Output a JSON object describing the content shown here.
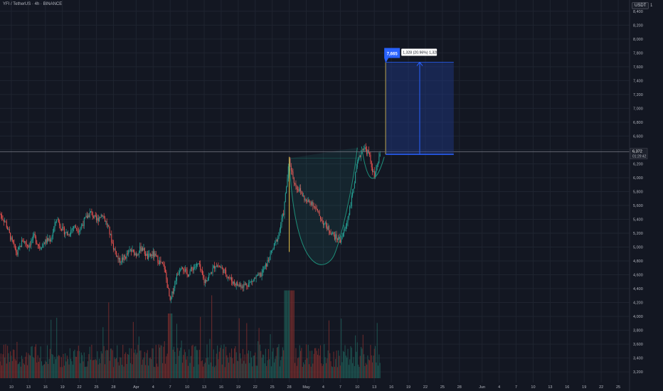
{
  "header": {
    "title": "YFI / TetherUS · 4h · BINANCE",
    "currency": "USDT",
    "collapse_label": "1"
  },
  "colors": {
    "background": "#131722",
    "grid": "#1f2430",
    "up": "#26a69a",
    "down": "#ef5350",
    "target_box": "#1e3a8a",
    "target_box_border": "#2962ff",
    "target_label_bg": "#2962ff",
    "cup_line": "#1e8f7a",
    "yellow_line": "#e8c547",
    "price_line": "#787b86",
    "axis_text": "#b2b5be"
  },
  "chart_data": {
    "type": "candlestick",
    "symbol": "YFI / TetherUS",
    "timeframe": "4h",
    "exchange": "BINANCE",
    "currency": "USDT",
    "y_ticks": [
      "8,400",
      "8,200",
      "8,000",
      "7,800",
      "7,600",
      "7,400",
      "7,200",
      "7,000",
      "6,800",
      "6,600",
      "6,400",
      "6,200",
      "6,000",
      "5,800",
      "5,600",
      "5,400",
      "5,200",
      "5,000",
      "4,800",
      "4,600",
      "4,400",
      "4,200",
      "4,000",
      "3,800",
      "3,600",
      "3,400",
      "3,200"
    ],
    "ylim": [
      3150,
      8480
    ],
    "x_ticks": [
      "10",
      "13",
      "16",
      "19",
      "22",
      "25",
      "28",
      "Apr",
      "4",
      "7",
      "10",
      "13",
      "16",
      "19",
      "22",
      "25",
      "28",
      "May",
      "4",
      "7",
      "10",
      "13",
      "16",
      "19",
      "22",
      "25",
      "28",
      "Jun",
      "4",
      "7",
      "10",
      "13",
      "16",
      "19",
      "22",
      "25"
    ],
    "x_tick_dates": [
      "2024-03-10",
      "2024-03-13",
      "2024-03-16",
      "2024-03-19",
      "2024-03-22",
      "2024-03-25",
      "2024-03-28",
      "2024-04-01",
      "2024-04-04",
      "2024-04-07",
      "2024-04-10",
      "2024-04-13",
      "2024-04-16",
      "2024-04-19",
      "2024-04-22",
      "2024-04-25",
      "2024-04-28",
      "2024-05-01",
      "2024-05-04",
      "2024-05-07",
      "2024-05-10",
      "2024-05-13",
      "2024-05-16",
      "2024-05-19",
      "2024-05-22",
      "2024-05-25",
      "2024-05-28",
      "2024-06-01",
      "2024-06-04",
      "2024-06-07",
      "2024-06-10",
      "2024-06-13",
      "2024-06-16",
      "2024-06-19",
      "2024-06-22",
      "2024-06-25"
    ],
    "xlim": [
      "2024-03-08",
      "2024-06-27"
    ],
    "price_path": [
      [
        "2024-03-08",
        5480
      ],
      [
        "2024-03-09",
        5350
      ],
      [
        "2024-03-10",
        5100
      ],
      [
        "2024-03-11",
        4900
      ],
      [
        "2024-03-12",
        5100
      ],
      [
        "2024-03-13",
        5020
      ],
      [
        "2024-03-14",
        5150
      ],
      [
        "2024-03-15",
        5000
      ],
      [
        "2024-03-16",
        5080
      ],
      [
        "2024-03-17",
        5120
      ],
      [
        "2024-03-18",
        5420
      ],
      [
        "2024-03-19",
        5250
      ],
      [
        "2024-03-20",
        5180
      ],
      [
        "2024-03-21",
        5300
      ],
      [
        "2024-03-22",
        5250
      ],
      [
        "2024-03-23",
        5400
      ],
      [
        "2024-03-24",
        5500
      ],
      [
        "2024-03-25",
        5380
      ],
      [
        "2024-03-26",
        5480
      ],
      [
        "2024-03-27",
        5300
      ],
      [
        "2024-03-28",
        5000
      ],
      [
        "2024-03-29",
        4800
      ],
      [
        "2024-03-30",
        4850
      ],
      [
        "2024-03-31",
        4950
      ],
      [
        "2024-04-01",
        4900
      ],
      [
        "2024-04-02",
        5000
      ],
      [
        "2024-04-03",
        4850
      ],
      [
        "2024-04-04",
        4900
      ],
      [
        "2024-04-05",
        4800
      ],
      [
        "2024-04-06",
        4700
      ],
      [
        "2024-04-07",
        4200
      ],
      [
        "2024-04-08",
        4550
      ],
      [
        "2024-04-09",
        4750
      ],
      [
        "2024-04-10",
        4600
      ],
      [
        "2024-04-11",
        4700
      ],
      [
        "2024-04-12",
        4750
      ],
      [
        "2024-04-13",
        4500
      ],
      [
        "2024-04-14",
        4600
      ],
      [
        "2024-04-15",
        4750
      ],
      [
        "2024-04-16",
        4700
      ],
      [
        "2024-04-17",
        4600
      ],
      [
        "2024-04-18",
        4500
      ],
      [
        "2024-04-19",
        4450
      ],
      [
        "2024-04-20",
        4450
      ],
      [
        "2024-04-21",
        4480
      ],
      [
        "2024-04-22",
        4550
      ],
      [
        "2024-04-23",
        4600
      ],
      [
        "2024-04-24",
        4750
      ],
      [
        "2024-04-25",
        4950
      ],
      [
        "2024-04-26",
        5150
      ],
      [
        "2024-04-27",
        5500
      ],
      [
        "2024-04-28",
        6250
      ],
      [
        "2024-04-29",
        5900
      ],
      [
        "2024-04-30",
        5800
      ],
      [
        "2024-05-01",
        5650
      ],
      [
        "2024-05-02",
        5650
      ],
      [
        "2024-05-03",
        5500
      ],
      [
        "2024-05-04",
        5350
      ],
      [
        "2024-05-05",
        5250
      ],
      [
        "2024-05-06",
        5150
      ],
      [
        "2024-05-07",
        5100
      ],
      [
        "2024-05-08",
        5300
      ],
      [
        "2024-05-09",
        5700
      ],
      [
        "2024-05-10",
        6200
      ],
      [
        "2024-05-11",
        6450
      ],
      [
        "2024-05-12",
        6350
      ],
      [
        "2024-05-13",
        6000
      ],
      [
        "2024-05-14",
        6350
      ]
    ],
    "last_price": "6,372",
    "countdown": "01:29:42",
    "long_position": {
      "entry": 6337,
      "target": 7665,
      "target_label": "7,665",
      "info_label": "1,328 (20.96%) 1,328",
      "start": "2024-05-15",
      "end": "2024-05-27"
    },
    "annotations": {
      "cup_rim_price": 6280,
      "cup_bottom_price": 4900,
      "cup_start": "2024-04-28",
      "cup_bottom": "2024-05-06",
      "cup_end": "2024-05-10",
      "handle_low_price": 5870,
      "handle_end": "2024-05-14",
      "vertical_line_1": {
        "date": "2024-04-28",
        "from": 4930,
        "to": 6300
      },
      "vertical_line_2": {
        "date": "2024-05-15",
        "from": 6337,
        "to": 7665
      }
    }
  }
}
